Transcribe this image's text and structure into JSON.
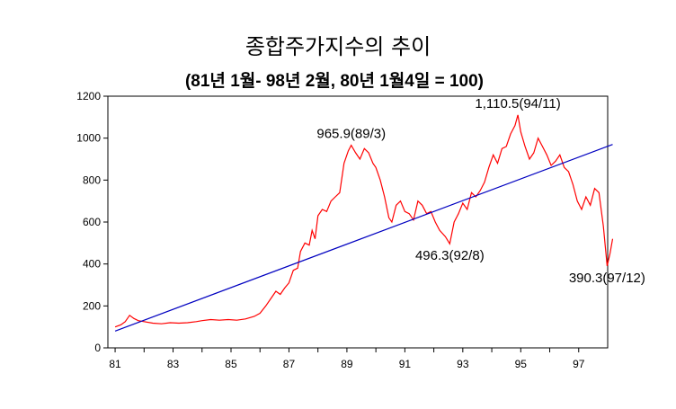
{
  "chart_data": {
    "type": "line",
    "title": "종합주가지수의 추이",
    "subtitle": "(81년 1월- 98년 2월,  80년 1월4일 = 100)",
    "xlabel": "",
    "ylabel": "",
    "xlim": [
      1980.75,
      1998.0
    ],
    "ylim": [
      0,
      1200
    ],
    "yticks": [
      0,
      200,
      400,
      600,
      800,
      1000,
      1200
    ],
    "xticks": [
      {
        "value": 1981,
        "label": "81"
      },
      {
        "value": 1983,
        "label": "83"
      },
      {
        "value": 1985,
        "label": "85"
      },
      {
        "value": 1987,
        "label": "87"
      },
      {
        "value": 1989,
        "label": "89"
      },
      {
        "value": 1991,
        "label": "91"
      },
      {
        "value": 1993,
        "label": "93"
      },
      {
        "value": 1995,
        "label": "95"
      },
      {
        "value": 1997,
        "label": "97"
      }
    ],
    "grid": false,
    "legend": "none",
    "series": [
      {
        "color": "#ff0000",
        "points": [
          [
            1981.0,
            100
          ],
          [
            1981.2,
            110
          ],
          [
            1981.35,
            125
          ],
          [
            1981.5,
            155
          ],
          [
            1981.65,
            140
          ],
          [
            1981.8,
            130
          ],
          [
            1982.0,
            125
          ],
          [
            1982.3,
            118
          ],
          [
            1982.6,
            115
          ],
          [
            1982.9,
            120
          ],
          [
            1983.2,
            118
          ],
          [
            1983.5,
            120
          ],
          [
            1983.8,
            125
          ],
          [
            1984.0,
            130
          ],
          [
            1984.3,
            135
          ],
          [
            1984.6,
            132
          ],
          [
            1984.9,
            135
          ],
          [
            1985.2,
            132
          ],
          [
            1985.5,
            138
          ],
          [
            1985.8,
            150
          ],
          [
            1986.0,
            165
          ],
          [
            1986.2,
            200
          ],
          [
            1986.4,
            240
          ],
          [
            1986.55,
            270
          ],
          [
            1986.7,
            255
          ],
          [
            1986.85,
            285
          ],
          [
            1987.0,
            310
          ],
          [
            1987.15,
            370
          ],
          [
            1987.3,
            380
          ],
          [
            1987.4,
            460
          ],
          [
            1987.55,
            500
          ],
          [
            1987.7,
            490
          ],
          [
            1987.8,
            560
          ],
          [
            1987.9,
            520
          ],
          [
            1988.0,
            630
          ],
          [
            1988.15,
            660
          ],
          [
            1988.3,
            650
          ],
          [
            1988.45,
            700
          ],
          [
            1988.6,
            720
          ],
          [
            1988.75,
            740
          ],
          [
            1988.9,
            880
          ],
          [
            1989.05,
            940
          ],
          [
            1989.15,
            965.9
          ],
          [
            1989.3,
            930
          ],
          [
            1989.45,
            900
          ],
          [
            1989.6,
            950
          ],
          [
            1989.75,
            930
          ],
          [
            1989.9,
            880
          ],
          [
            1990.0,
            860
          ],
          [
            1990.15,
            800
          ],
          [
            1990.3,
            720
          ],
          [
            1990.45,
            620
          ],
          [
            1990.55,
            600
          ],
          [
            1990.7,
            680
          ],
          [
            1990.85,
            700
          ],
          [
            1991.0,
            650
          ],
          [
            1991.15,
            640
          ],
          [
            1991.3,
            610
          ],
          [
            1991.45,
            700
          ],
          [
            1991.6,
            680
          ],
          [
            1991.75,
            640
          ],
          [
            1991.9,
            650
          ],
          [
            1992.05,
            600
          ],
          [
            1992.2,
            560
          ],
          [
            1992.4,
            530
          ],
          [
            1992.55,
            496.3
          ],
          [
            1992.7,
            600
          ],
          [
            1992.85,
            640
          ],
          [
            1993.0,
            690
          ],
          [
            1993.15,
            660
          ],
          [
            1993.3,
            740
          ],
          [
            1993.45,
            720
          ],
          [
            1993.6,
            750
          ],
          [
            1993.75,
            790
          ],
          [
            1993.9,
            860
          ],
          [
            1994.05,
            920
          ],
          [
            1994.2,
            880
          ],
          [
            1994.35,
            950
          ],
          [
            1994.5,
            960
          ],
          [
            1994.65,
            1020
          ],
          [
            1994.8,
            1060
          ],
          [
            1994.9,
            1110.5
          ],
          [
            1995.0,
            1030
          ],
          [
            1995.15,
            960
          ],
          [
            1995.3,
            900
          ],
          [
            1995.45,
            930
          ],
          [
            1995.6,
            1000
          ],
          [
            1995.75,
            960
          ],
          [
            1995.9,
            920
          ],
          [
            1996.05,
            870
          ],
          [
            1996.2,
            890
          ],
          [
            1996.35,
            920
          ],
          [
            1996.5,
            860
          ],
          [
            1996.65,
            840
          ],
          [
            1996.8,
            780
          ],
          [
            1996.95,
            700
          ],
          [
            1997.1,
            660
          ],
          [
            1997.25,
            720
          ],
          [
            1997.4,
            680
          ],
          [
            1997.55,
            760
          ],
          [
            1997.7,
            740
          ],
          [
            1997.85,
            580
          ],
          [
            1997.98,
            390.3
          ],
          [
            1998.08,
            450
          ],
          [
            1998.17,
            520
          ]
        ]
      },
      {
        "color": "#0000c0",
        "points": [
          [
            1981.0,
            80
          ],
          [
            1998.17,
            970
          ]
        ]
      }
    ],
    "annotations": [
      {
        "text": "965.9(89/3)",
        "x": 1989.15,
        "y": 965.9,
        "position": "above"
      },
      {
        "text": "1,110.5(94/11)",
        "x": 1994.9,
        "y": 1110.5,
        "position": "above"
      },
      {
        "text": "496.3(92/8)",
        "x": 1992.55,
        "y": 496.3,
        "position": "below"
      },
      {
        "text": "390.3(97/12)",
        "x": 1997.98,
        "y": 390.3,
        "position": "below"
      }
    ]
  }
}
